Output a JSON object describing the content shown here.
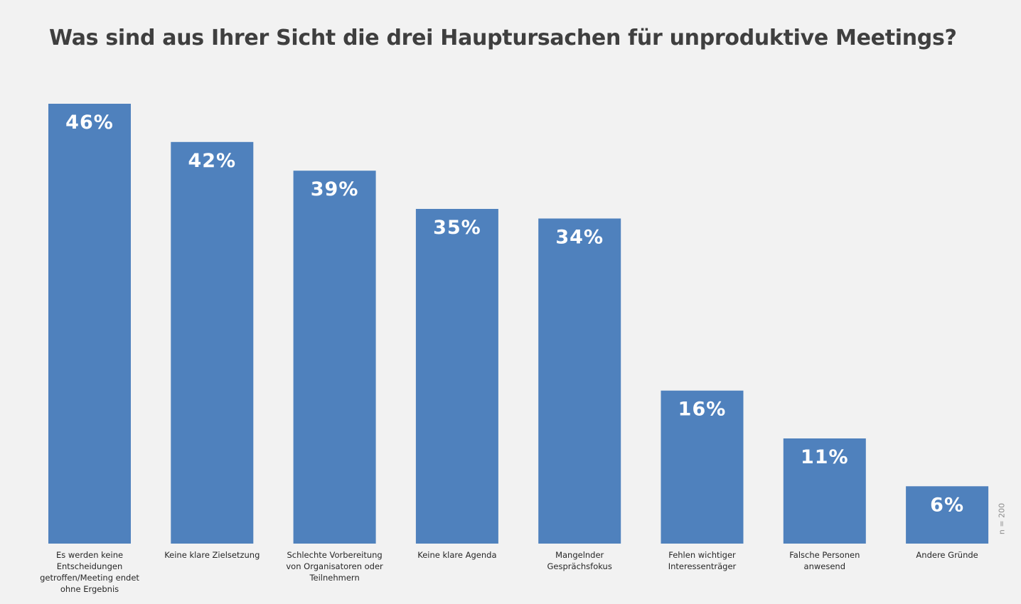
{
  "title": "Was sind aus Ihrer Sicht die drei Hauptursachen für unproduktive Meetings?",
  "sample_note": "n = 200",
  "colors": {
    "background": "#f2f2f2",
    "bar": "#4f81bd",
    "value_label": "#ffffff",
    "title": "#3f3f3f"
  },
  "chart_data": {
    "type": "bar",
    "title": "Was sind aus Ihrer Sicht die drei Hauptursachen für unproduktive Meetings?",
    "xlabel": "",
    "ylabel": "",
    "unit": "%",
    "ylim": [
      0,
      46
    ],
    "grid": false,
    "legend": "none",
    "categories": [
      "Es werden keine Entscheidungen getroffen/Meeting endet ohne Ergebnis",
      "Keine klare Zielsetzung",
      "Schlechte Vorbereitung von Organisatoren oder Teilnehmern",
      "Keine klare Agenda",
      "Mangelnder Gesprächsfokus",
      "Fehlen wichtiger Interessenträger",
      "Falsche Personen anwesend",
      "Andere Gründe"
    ],
    "values": [
      46,
      42,
      39,
      35,
      34,
      16,
      11,
      6
    ],
    "value_labels": [
      "46%",
      "42%",
      "39%",
      "35%",
      "34%",
      "16%",
      "11%",
      "6%"
    ]
  }
}
